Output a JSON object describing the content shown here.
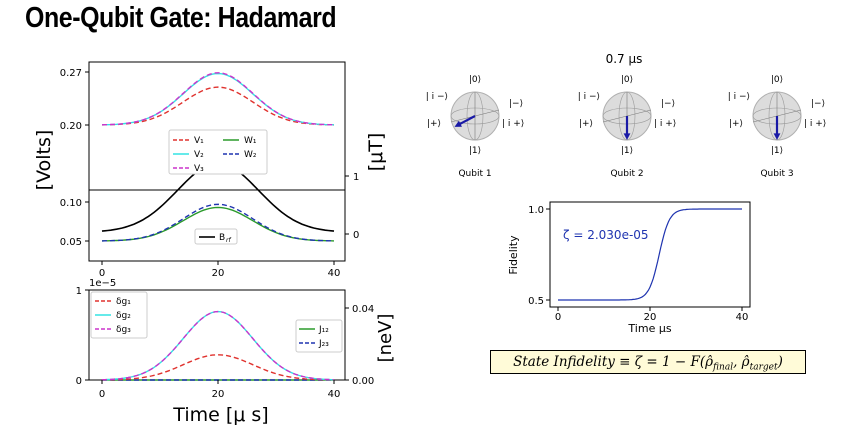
{
  "title": "One-Qubit Gate: Hadamard",
  "time_label": "0.7 μs",
  "colors": {
    "red": "#e0322e",
    "cyan": "#33e3e3",
    "magenta": "#cc33cc",
    "green": "#2a9a2a",
    "blue": "#1f34b0",
    "black": "#000000"
  },
  "formula": {
    "text": "State Infidelity ≡ ζ = 1 − F(ρ̂final, ρ̂target)",
    "lhs": "State Infidelity ≡ ζ = 1 − F(ρ̂",
    "sub1": "final",
    "mid": ", ρ̂",
    "sub2": "target",
    "rhs": ")"
  },
  "qubits": [
    {
      "label": "Qubit 1",
      "state_labels": {
        "top": "|0⟩",
        "bottom": "|1⟩",
        "upper_left": "| i −⟩",
        "left": "|+⟩",
        "upper_right": "|−⟩",
        "right": "| i +⟩"
      },
      "arrow": "toward |+⟩"
    },
    {
      "label": "Qubit 2",
      "state_labels": {
        "top": "|0⟩",
        "bottom": "|1⟩",
        "upper_left": "| i −⟩",
        "left": "|+⟩",
        "upper_right": "|−⟩",
        "right": "| i +⟩"
      },
      "arrow": "toward |1⟩"
    },
    {
      "label": "Qubit 3",
      "state_labels": {
        "top": "|0⟩",
        "bottom": "|1⟩",
        "upper_left": "| i −⟩",
        "left": "|+⟩",
        "upper_right": "|−⟩",
        "right": "| i +⟩"
      },
      "arrow": "toward |1⟩"
    }
  ],
  "chart_data": [
    {
      "id": "voltage-field",
      "type": "line",
      "xlabel": "",
      "ylabel_left": "[Volts]",
      "ylabel_right": "[μT]",
      "xlim": [
        0,
        40
      ],
      "x_ticks": [
        "0",
        "20",
        "40"
      ],
      "y_left_ticks": [
        "0.05",
        "0.10",
        "0.20",
        "0.27"
      ],
      "y_right_ticks": [
        "0",
        "1"
      ],
      "axis_break": "broken left axis between 0.10 and 0.20",
      "legend_top": {
        "placement": "center",
        "entries": [
          "V₁",
          "V₂",
          "V₃",
          "W₁",
          "W₂"
        ]
      },
      "legend_bottom": {
        "placement": "center",
        "entries": [
          "B_rf"
        ]
      },
      "series": [
        {
          "name": "V₁",
          "color": "red",
          "dash": true,
          "axis": "left",
          "baseline": 0.2,
          "peak": 0.25,
          "center": 20,
          "width": 6
        },
        {
          "name": "V₂",
          "color": "cyan",
          "dash": false,
          "axis": "left",
          "baseline": 0.2,
          "peak": 0.268,
          "center": 20,
          "width": 6
        },
        {
          "name": "V₃",
          "color": "magenta",
          "dash": true,
          "axis": "left",
          "baseline": 0.2,
          "peak": 0.269,
          "center": 20,
          "width": 6
        },
        {
          "name": "W₁",
          "color": "green",
          "dash": false,
          "axis": "left",
          "baseline": 0.05,
          "peak": 0.093,
          "center": 20,
          "width": 6
        },
        {
          "name": "W₂",
          "color": "blue",
          "dash": true,
          "axis": "left",
          "baseline": 0.05,
          "peak": 0.097,
          "center": 20,
          "width": 6
        },
        {
          "name": "B_rf",
          "color": "black",
          "dash": false,
          "axis": "right",
          "baseline": 0.03,
          "peak": 1.22,
          "center": 20,
          "width": 7
        }
      ]
    },
    {
      "id": "coupling",
      "type": "line",
      "xlabel": "Time [μ s]",
      "ylabel_right": "[neV]",
      "scale_note": "1e−5",
      "xlim": [
        0,
        40
      ],
      "ylim_left": [
        0,
        1
      ],
      "ylim_right": [
        0,
        0.04
      ],
      "x_ticks": [
        "0",
        "20",
        "40"
      ],
      "y_left_ticks": [
        "0",
        "1"
      ],
      "y_right_ticks": [
        "0.00",
        "0.04"
      ],
      "legend_left": {
        "placement": "upper-left",
        "entries": [
          "δg₁",
          "δg₂",
          "δg₃"
        ]
      },
      "legend_right": {
        "placement": "center-right",
        "entries": [
          "J₁₂",
          "J₂₃"
        ]
      },
      "series": [
        {
          "name": "δg₁",
          "color": "red",
          "dash": true,
          "peak": 0.28,
          "center": 20,
          "width": 6
        },
        {
          "name": "δg₂",
          "color": "cyan",
          "dash": false,
          "peak": 0.76,
          "center": 20,
          "width": 6
        },
        {
          "name": "δg₃",
          "color": "magenta",
          "dash": true,
          "peak": 0.76,
          "center": 20,
          "width": 6
        },
        {
          "name": "J₁₂",
          "color": "green",
          "dash": false,
          "peak": 0.0,
          "center": 20,
          "width": 6
        },
        {
          "name": "J₂₃",
          "color": "blue",
          "dash": true,
          "peak": 0.0,
          "center": 20,
          "width": 6
        }
      ]
    },
    {
      "id": "fidelity",
      "type": "line",
      "xlabel": "Time μs",
      "ylabel": "Fidelity",
      "annotation": "ζ = 2.030e-05",
      "xlim": [
        0,
        40
      ],
      "ylim": [
        0.5,
        1.0
      ],
      "x_ticks": [
        "0",
        "20",
        "40"
      ],
      "y_ticks": [
        "0.5",
        "1.0"
      ],
      "series": [
        {
          "name": "",
          "color": "blue",
          "start": 0.5,
          "end": 1.0,
          "midpoint": 22,
          "steepness": 0.9
        }
      ]
    }
  ]
}
